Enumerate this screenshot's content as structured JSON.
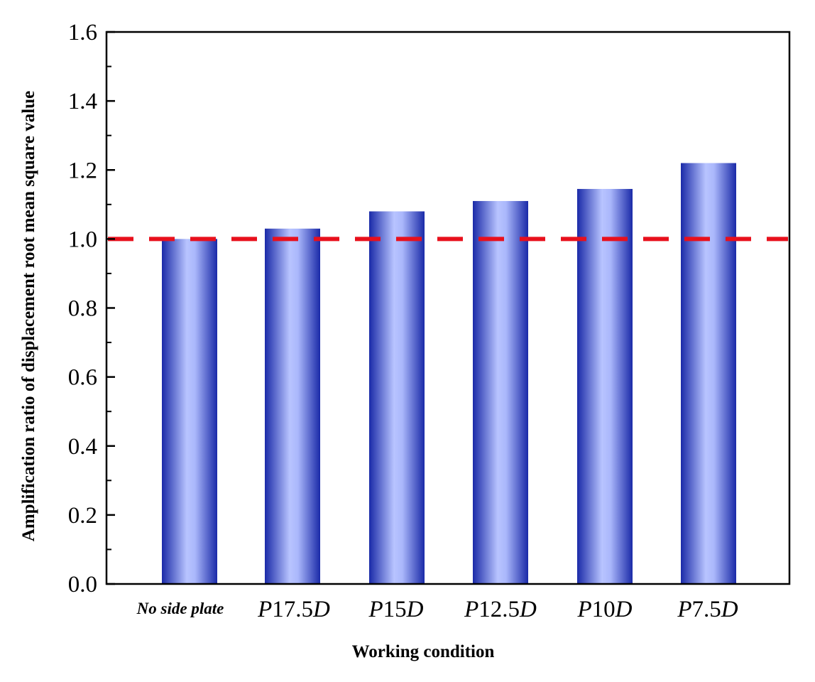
{
  "chart_data": {
    "type": "bar",
    "xlabel": "Working condition",
    "ylabel": "Amplification ratio of displacement root mean square value",
    "ylim": [
      0,
      1.6
    ],
    "yticks": [
      "0.0",
      "0.2",
      "0.4",
      "0.6",
      "0.8",
      "1.0",
      "1.2",
      "1.4",
      "1.6"
    ],
    "categories": [
      {
        "text": "No side plate",
        "parts": []
      },
      {
        "text": "P17.5D",
        "parts": [
          {
            "t": "P",
            "i": true
          },
          {
            "t": "17.5",
            "i": false
          },
          {
            "t": "D",
            "i": true
          }
        ]
      },
      {
        "text": "P15D",
        "parts": [
          {
            "t": "P",
            "i": true
          },
          {
            "t": "15",
            "i": false
          },
          {
            "t": "D",
            "i": true
          }
        ]
      },
      {
        "text": "P12.5D",
        "parts": [
          {
            "t": "P",
            "i": true
          },
          {
            "t": "12.5",
            "i": false
          },
          {
            "t": "D",
            "i": true
          }
        ]
      },
      {
        "text": "P10D",
        "parts": [
          {
            "t": "P",
            "i": true
          },
          {
            "t": "10",
            "i": false
          },
          {
            "t": "D",
            "i": true
          }
        ]
      },
      {
        "text": "P7.5D",
        "parts": [
          {
            "t": "P",
            "i": true
          },
          {
            "t": "7.5",
            "i": false
          },
          {
            "t": "D",
            "i": true
          }
        ]
      }
    ],
    "values": [
      1.0,
      1.03,
      1.08,
      1.11,
      1.145,
      1.22
    ],
    "reference_line": {
      "value": 1.0,
      "style": "dashed",
      "color": "#e8101c"
    },
    "bar_colors": {
      "edge": "#1a2aa8",
      "center": "#b8c4ff"
    },
    "grid": false
  }
}
